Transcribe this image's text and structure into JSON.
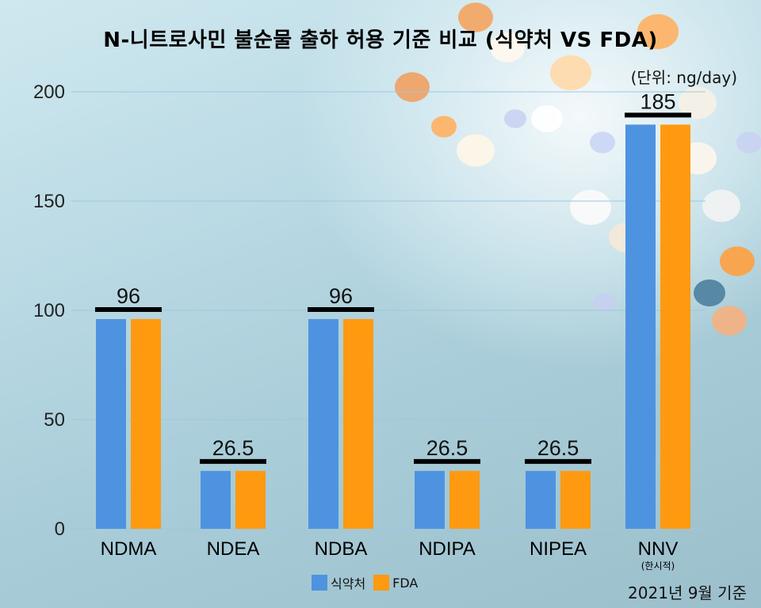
{
  "colors": {
    "mfds": "#4e93e0",
    "fda": "#ff9a10",
    "capline": "#000000",
    "grid": "#9ec7e0",
    "text": "#111111"
  },
  "title": "N-니트로사민 불순물 출하 허용 기준 비교 (식약처 VS FDA)",
  "unit_label": "(단위: ng/day)",
  "footnote": "2021년 9월 기준",
  "legend": [
    {
      "label": "식약처",
      "color": "#4e93e0"
    },
    {
      "label": "FDA",
      "color": "#ff9a10"
    }
  ],
  "chart_data": {
    "type": "bar",
    "title": "N-니트로사민 불순물 출하 허용 기준 비교 (식약처 VS FDA)",
    "xlabel": "",
    "ylabel": "ng/day",
    "ylim": [
      0,
      200
    ],
    "yticks": [
      0,
      50,
      100,
      150,
      200
    ],
    "grid": true,
    "legend_position": "bottom-center",
    "categories": [
      "NDMA",
      "NDEA",
      "NDBA",
      "NDIPA",
      "NIPEA",
      "NNV"
    ],
    "category_sublabels": [
      "",
      "",
      "",
      "",
      "",
      "(한시적)"
    ],
    "data_labels": [
      "96",
      "26.5",
      "96",
      "26.5",
      "26.5",
      "185"
    ],
    "series": [
      {
        "name": "식약처",
        "values": [
          96,
          26.5,
          96,
          26.5,
          26.5,
          185
        ]
      },
      {
        "name": "FDA",
        "values": [
          96,
          26.5,
          96,
          26.5,
          26.5,
          185
        ]
      }
    ]
  }
}
